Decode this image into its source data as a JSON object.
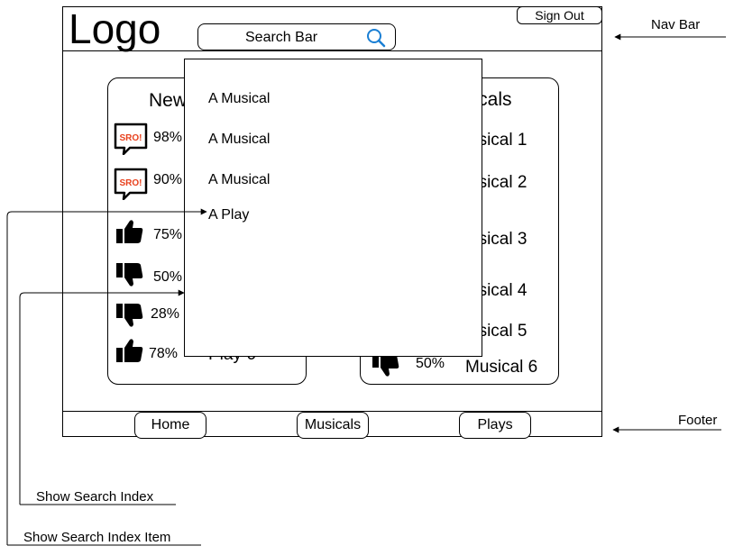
{
  "header": {
    "logo": "Logo",
    "sign_out": "Sign Out",
    "search_label": "Search Bar"
  },
  "left_panel": {
    "title": "New",
    "rows": [
      {
        "icon": "sro-badge-icon",
        "percent": "98%"
      },
      {
        "icon": "sro-badge-icon",
        "percent": "90%"
      },
      {
        "icon": "thumbs-up-icon",
        "percent": "75%"
      },
      {
        "icon": "thumbs-down-icon",
        "percent": "50%"
      },
      {
        "icon": "thumbs-down-icon",
        "percent": "28%"
      },
      {
        "icon": "thumbs-up-icon",
        "percent": "78%"
      }
    ],
    "last_row_name": "Play 6"
  },
  "right_panel": {
    "title": "sicals",
    "rows": [
      {
        "name": "usical 1"
      },
      {
        "name": "usical 2"
      },
      {
        "name": "usical 3"
      },
      {
        "name": "usical 4"
      },
      {
        "name": "usical 5"
      },
      {
        "name": "Musical 6",
        "percent": "50%",
        "icon": "thumbs-down-icon"
      }
    ]
  },
  "dropdown": {
    "items": [
      "A Musical",
      "A Musical",
      "A Musical",
      "A Play"
    ]
  },
  "footer": {
    "buttons": [
      "Home",
      "Musicals",
      "Plays"
    ]
  },
  "annotations": {
    "nav_bar": "Nav Bar",
    "footer": "Footer",
    "show_search_index": "Show Search Index",
    "show_search_index_item": "Show Search Index Item"
  },
  "colors": {
    "search_icon": "#1a7fd4",
    "sro_text": "#e8401c"
  }
}
